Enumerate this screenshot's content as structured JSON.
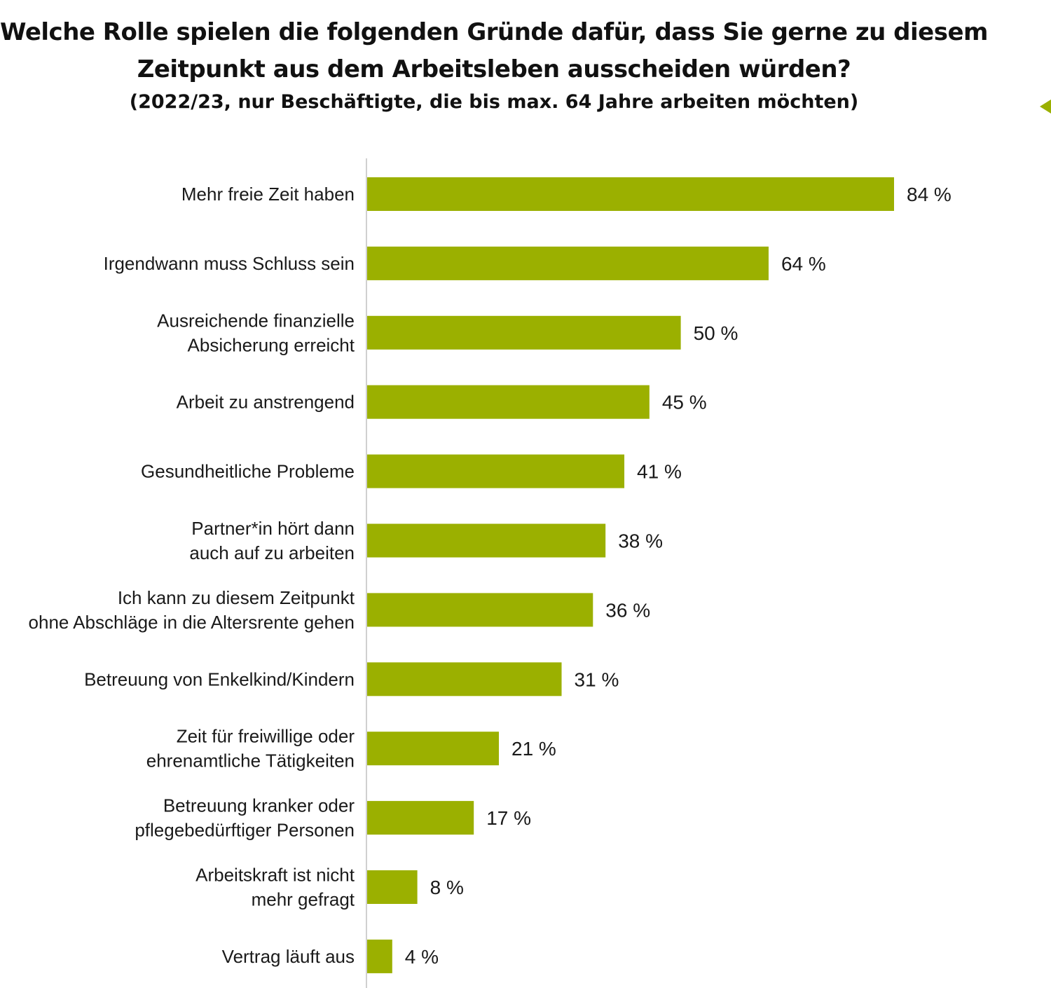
{
  "header": {
    "title_line1": "Welche Rolle spielen die folgenden Gründe dafür, dass Sie gerne zu diesem",
    "title_line2": "Zeitpunkt aus dem Arbeitsleben ausscheiden würden?",
    "subtitle": "(2022/23, nur Beschäftigte, die bis max. 64 Jahre arbeiten möchten)"
  },
  "colors": {
    "bar": "#9bb000",
    "axis": "#d0d0d0",
    "accent_arrow": "#9bb000"
  },
  "chart_data": {
    "type": "bar",
    "orientation": "horizontal",
    "title": "Welche Rolle spielen die folgenden Gründe dafür, dass Sie gerne zu diesem Zeitpunkt aus dem Arbeitsleben ausscheiden würden?",
    "subtitle": "(2022/23, nur Beschäftigte, die bis max. 64 Jahre arbeiten möchten)",
    "unit": "%",
    "xlim": [
      0,
      100
    ],
    "grid": false,
    "categories": [
      [
        "Mehr freie Zeit haben"
      ],
      [
        "Irgendwann muss Schluss sein"
      ],
      [
        "Ausreichende finanzielle",
        "Absicherung erreicht"
      ],
      [
        "Arbeit zu anstrengend"
      ],
      [
        "Gesundheitliche Probleme"
      ],
      [
        "Partner*in hört dann",
        "auch auf zu arbeiten"
      ],
      [
        "Ich kann zu diesem Zeitpunkt",
        "ohne Abschläge in die Altersrente gehen"
      ],
      [
        "Betreuung von Enkelkind/Kindern"
      ],
      [
        "Zeit für freiwillige oder",
        "ehrenamtliche Tätigkeiten"
      ],
      [
        "Betreuung kranker oder",
        "pflegebedürftiger Personen"
      ],
      [
        "Arbeitskraft ist nicht",
        "mehr gefragt"
      ],
      [
        "Vertrag läuft aus"
      ]
    ],
    "values": [
      84,
      64,
      50,
      45,
      41,
      38,
      36,
      31,
      21,
      17,
      8,
      4
    ],
    "value_labels": [
      "84 %",
      "64 %",
      "50 %",
      "45 %",
      "41 %",
      "38 %",
      "36 %",
      "31 %",
      "21 %",
      "17 %",
      "8 %",
      "4 %"
    ]
  }
}
